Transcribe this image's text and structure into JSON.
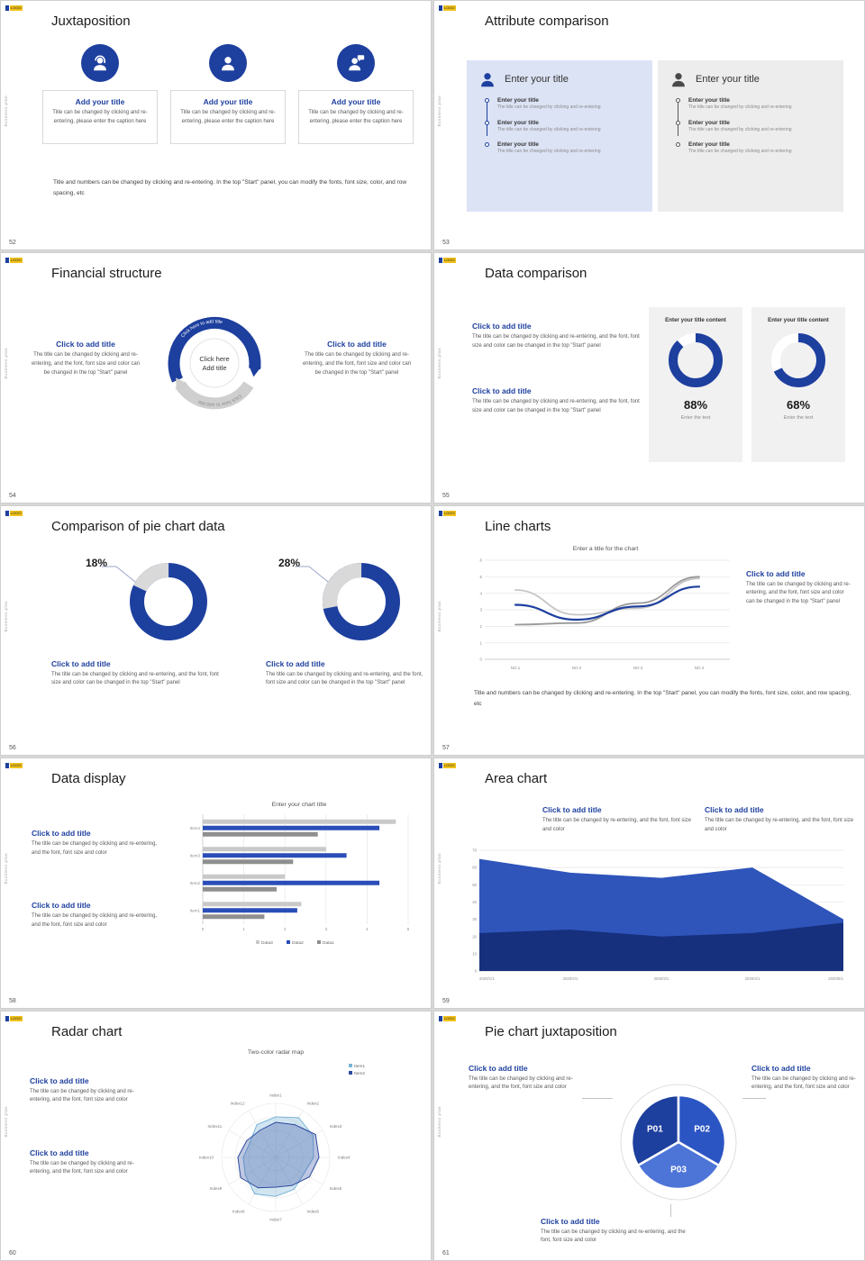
{
  "common": {
    "logo_text": "LOGO",
    "sidebar_text": "Business plan",
    "click_title": "Click to add title",
    "add_title": "Add your title",
    "enter_title": "Enter your title",
    "enter_desc": "The title can be changed by clicking and re-entering",
    "body_full": "The title can be changed by clicking and re-entering, and the font, font size and color can be changed in the top \"Start\" panel",
    "body_short": "The title can be changed by clicking and re-entering, and the font, font size and color",
    "note": "Title and numbers can be changed by clicking and re-entering. In the top \"Start\" panel, you can modify the fonts, font size, color, and row spacing, etc"
  },
  "slides": {
    "s52": {
      "number": "52",
      "title": "Juxtaposition",
      "caption": "Title can be changed by clicking and re-entering, please enter the caption here"
    },
    "s53": {
      "number": "53",
      "title": "Attribute comparison"
    },
    "s54": {
      "number": "54",
      "title": "Financial structure",
      "center_line1": "Click here",
      "center_line2": "Add title",
      "arc_text": "Click here to add title"
    },
    "s55": {
      "number": "55",
      "title": "Data comparison",
      "card_top": "Enter your title content",
      "card_caption": "Enter the text",
      "pct1": "88%",
      "pct2": "68%"
    },
    "s56": {
      "number": "56",
      "title": "Comparison of pie chart data",
      "pct1": "18%",
      "pct2": "28%"
    },
    "s57": {
      "number": "57",
      "title": "Line charts",
      "chart_title": "Enter a title for the chart"
    },
    "s58": {
      "number": "58",
      "title": "Data display"
    },
    "s59": {
      "number": "59",
      "title": "Area chart",
      "body": "The title can be changed by re-entering, and the font, font size and color"
    },
    "s60": {
      "number": "60",
      "title": "Radar chart"
    },
    "s61": {
      "number": "61",
      "title": "Pie chart juxtaposition"
    }
  },
  "charts": {
    "donut88": {
      "value": 88
    },
    "donut68": {
      "value": 68
    },
    "donut18": {
      "value": 18
    },
    "donut28": {
      "value": 28
    },
    "line": {
      "y_max": 6,
      "x_labels": [
        "NO.1",
        "NO.2",
        "NO.3",
        "NO.4"
      ],
      "series": [
        {
          "color": "#c6c6c6",
          "width": 1.8,
          "values": [
            4.2,
            2.7,
            3.1,
            4.9
          ]
        },
        {
          "color": "#9a9a9a",
          "width": 1.8,
          "values": [
            2.1,
            2.2,
            3.4,
            5.0
          ]
        },
        {
          "color": "#1d3f9e",
          "width": 2.2,
          "values": [
            3.3,
            2.4,
            3.2,
            4.4
          ]
        }
      ]
    },
    "bar": {
      "title": "Enter your chart title",
      "x_max": 5,
      "categories": [
        "Item1",
        "Item2",
        "Item3",
        "Item4"
      ],
      "series": [
        {
          "name": "Data3",
          "color": "#c9c9c9",
          "values": [
            2.4,
            2.0,
            3.0,
            4.7
          ]
        },
        {
          "name": "Data2",
          "color": "#2a4db8",
          "values": [
            2.3,
            4.3,
            3.5,
            4.3
          ]
        },
        {
          "name": "Data1",
          "color": "#8f8f8f",
          "values": [
            1.5,
            1.8,
            2.2,
            2.8
          ]
        }
      ]
    },
    "area": {
      "y_max": 70,
      "y_step": 10,
      "x_labels": [
        "2020/1/1",
        "2020/2/1",
        "2020/3/1",
        "2020/4/1",
        "2020/5/1"
      ],
      "series": [
        {
          "color": "#2f55bb",
          "values": [
            65,
            57,
            54,
            60,
            30
          ]
        },
        {
          "color": "#16307e",
          "values": [
            22,
            24,
            20,
            22,
            28
          ]
        }
      ]
    },
    "radar": {
      "title": "Two-color radar map",
      "axes": [
        "Index1",
        "Index2",
        "Index3",
        "Index4",
        "Index5",
        "Index6",
        "Index7",
        "Index8",
        "Index9",
        "Index10",
        "Index11",
        "Index12"
      ],
      "series": [
        {
          "name": "Item1",
          "color": "#7ab4d8",
          "fill": "rgba(122,180,216,0.35)",
          "values": [
            0.75,
            0.85,
            0.8,
            0.7,
            0.6,
            0.68,
            0.72,
            0.78,
            0.65,
            0.6,
            0.55,
            0.7
          ]
        },
        {
          "name": "Item2",
          "color": "#2c4a9e",
          "fill": "rgba(44,74,158,0.3)",
          "values": [
            0.65,
            0.7,
            0.85,
            0.8,
            0.72,
            0.6,
            0.55,
            0.65,
            0.75,
            0.7,
            0.62,
            0.58
          ]
        }
      ]
    },
    "pie": {
      "segments": [
        {
          "label": "P01",
          "color": "#1d3f9e",
          "start": 240,
          "end": 360
        },
        {
          "label": "P02",
          "color": "#2c55c4",
          "start": 0,
          "end": 120
        },
        {
          "label": "P03",
          "color": "#4d75d8",
          "start": 120,
          "end": 240
        }
      ]
    }
  }
}
